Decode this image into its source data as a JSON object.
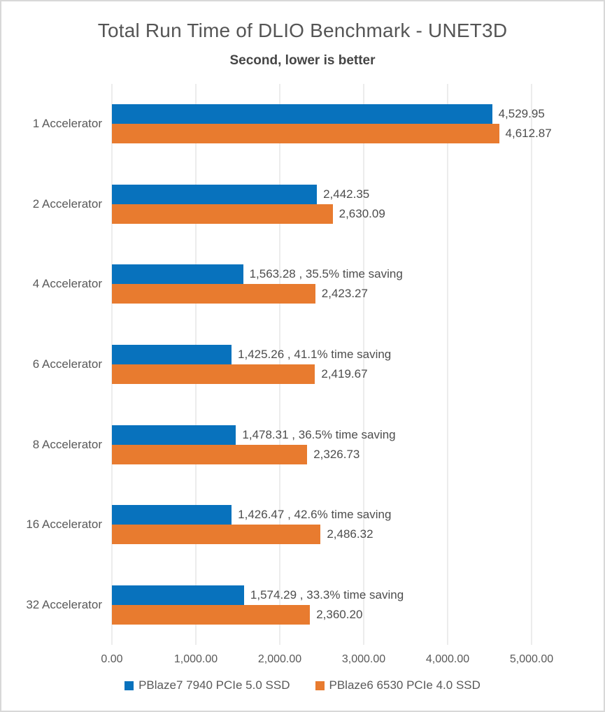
{
  "chart_data": {
    "type": "bar",
    "orientation": "horizontal",
    "title": "Total Run Time of DLIO Benchmark - UNET3D",
    "subtitle": "Second, lower is better",
    "xlabel": "",
    "ylabel": "",
    "xlim": [
      0,
      5000
    ],
    "grid": true,
    "legend_position": "bottom",
    "categories": [
      "1 Accelerator",
      "2 Accelerator",
      "4 Accelerator",
      "6 Accelerator",
      "8 Accelerator",
      "16 Accelerator",
      "32 Accelerator"
    ],
    "series": [
      {
        "name": "PBlaze7 7940 PCIe 5.0 SSD",
        "color": "#0872bd",
        "values": [
          4529.95,
          2442.35,
          1563.28,
          1425.26,
          1478.31,
          1426.47,
          1574.29
        ],
        "labels": [
          "4,529.95",
          "2,442.35",
          "1,563.28 , 35.5% time saving",
          "1,425.26 , 41.1% time saving",
          "1,478.31 , 36.5% time saving",
          "1,426.47 , 42.6% time saving",
          "1,574.29 , 33.3% time saving"
        ]
      },
      {
        "name": "PBlaze6 6530 PCIe 4.0 SSD",
        "color": "#e87b2f",
        "values": [
          4612.87,
          2630.09,
          2423.27,
          2419.67,
          2326.73,
          2486.32,
          2360.2
        ],
        "labels": [
          "4,612.87",
          "2,630.09",
          "2,423.27",
          "2,419.67",
          "2,326.73",
          "2,486.32",
          "2,360.20"
        ]
      }
    ],
    "x_ticks": [
      {
        "value": 0,
        "label": "0.00"
      },
      {
        "value": 1000,
        "label": "1,000.00"
      },
      {
        "value": 2000,
        "label": "2,000.00"
      },
      {
        "value": 3000,
        "label": "3,000.00"
      },
      {
        "value": 4000,
        "label": "4,000.00"
      },
      {
        "value": 5000,
        "label": "5,000.00"
      }
    ]
  }
}
